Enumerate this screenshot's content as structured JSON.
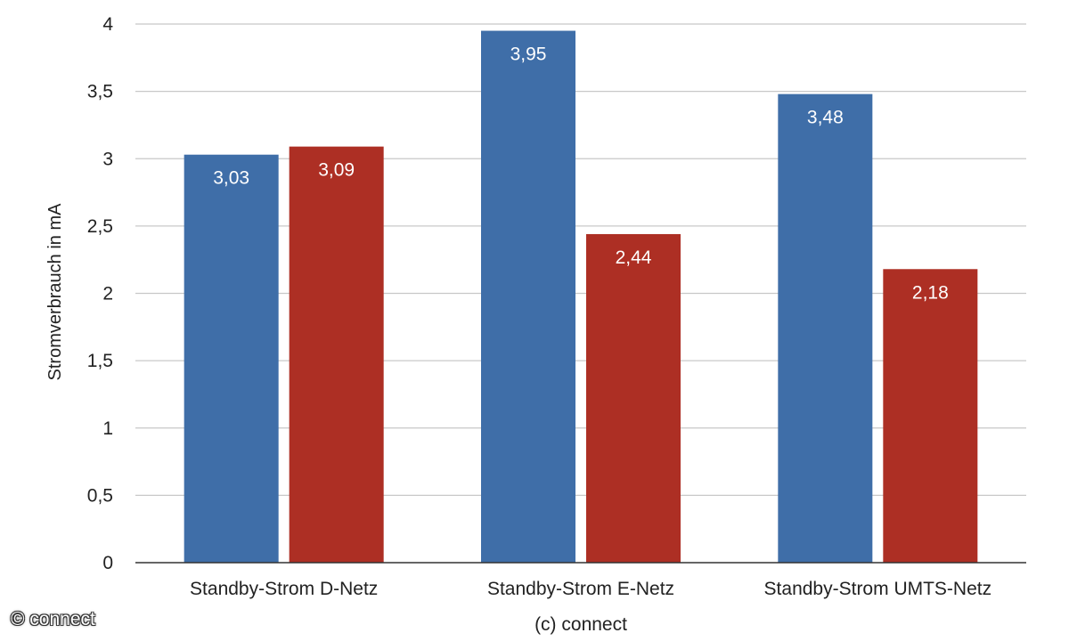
{
  "chart_data": {
    "type": "bar",
    "categories": [
      "Standby-Strom D-Netz",
      "Standby-Strom E-Netz",
      "Standby-Strom UMTS-Netz"
    ],
    "series": [
      {
        "values": [
          3.03,
          3.95,
          3.48
        ],
        "labels": [
          "3,03",
          "3,95",
          "3,48"
        ],
        "color": "#3f6ea8"
      },
      {
        "values": [
          3.09,
          2.44,
          2.18
        ],
        "labels": [
          "3,09",
          "2,44",
          "2,18"
        ],
        "color": "#ad2f24"
      }
    ],
    "ylabel": "Stromverbrauch in mA",
    "xlabel": "(c) connect",
    "ylim": [
      0,
      4
    ],
    "yticks": [
      0,
      0.5,
      1,
      1.5,
      2,
      2.5,
      3,
      3.5,
      4
    ],
    "ytick_labels": [
      "0",
      "0,5",
      "1",
      "1,5",
      "2",
      "2,5",
      "3",
      "3,5",
      "4"
    ],
    "grid": true,
    "legend": "none"
  },
  "watermark": "© connect"
}
